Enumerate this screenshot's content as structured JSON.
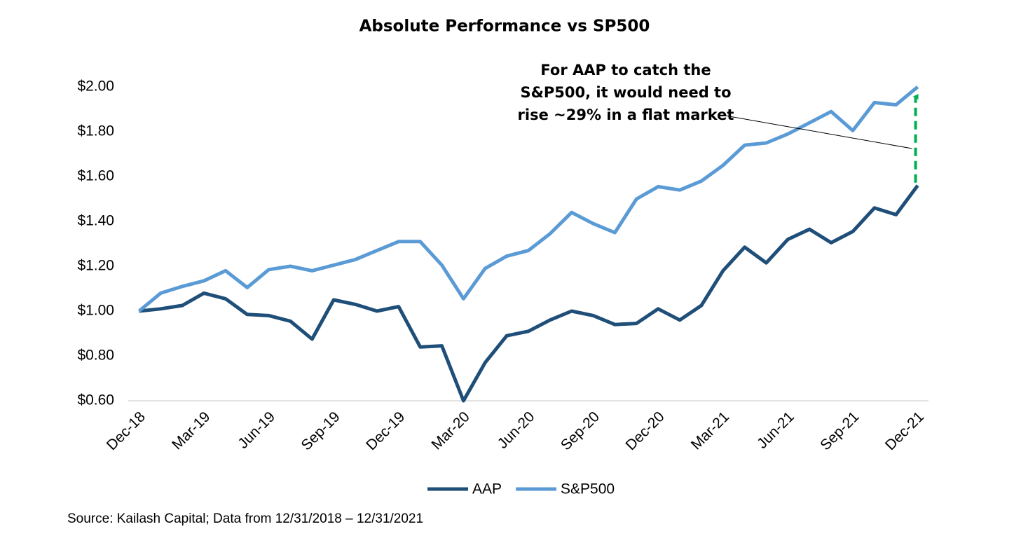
{
  "chart_data": {
    "type": "line",
    "title": "Absolute Performance vs SP500",
    "annotation": [
      "For AAP to catch the",
      "S&P500, it would need to",
      "rise ~29% in a flat market"
    ],
    "source": "Source: Kailash Capital; Data from 12/31/2018 – 12/31/2021",
    "categories": [
      "Dec-18",
      null,
      null,
      "Mar-19",
      null,
      null,
      "Jun-19",
      null,
      null,
      "Sep-19",
      null,
      null,
      "Dec-19",
      null,
      null,
      "Mar-20",
      null,
      null,
      "Jun-20",
      null,
      null,
      "Sep-20",
      null,
      null,
      "Dec-20",
      null,
      null,
      "Mar-21",
      null,
      null,
      "Jun-21",
      null,
      null,
      "Sep-21",
      null,
      null,
      "Dec-21"
    ],
    "series": [
      {
        "name": "AAP",
        "color": "#1f4e79",
        "values": [
          1.0,
          1.01,
          1.025,
          1.08,
          1.055,
          0.985,
          0.98,
          0.955,
          0.875,
          1.05,
          1.03,
          1.0,
          1.02,
          0.84,
          0.845,
          0.6,
          0.77,
          0.89,
          0.91,
          0.96,
          1.0,
          0.98,
          0.94,
          0.945,
          1.01,
          0.96,
          1.025,
          1.18,
          1.285,
          1.215,
          1.32,
          1.365,
          1.305,
          1.355,
          1.46,
          1.43,
          1.56
        ]
      },
      {
        "name": "S&P500",
        "color": "#5b9bd5",
        "values": [
          1.0,
          1.08,
          1.11,
          1.135,
          1.18,
          1.105,
          1.185,
          1.2,
          1.18,
          1.205,
          1.23,
          1.27,
          1.31,
          1.31,
          1.205,
          1.055,
          1.19,
          1.245,
          1.27,
          1.345,
          1.44,
          1.39,
          1.35,
          1.5,
          1.555,
          1.54,
          1.58,
          1.65,
          1.74,
          1.75,
          1.79,
          1.84,
          1.89,
          1.805,
          1.93,
          1.92,
          2.0
        ]
      }
    ],
    "ylim": [
      0.6,
      2.0
    ],
    "yticks": [
      {
        "value": 0.6,
        "label": "$0.60"
      },
      {
        "value": 0.8,
        "label": "$0.80"
      },
      {
        "value": 1.0,
        "label": "$1.00"
      },
      {
        "value": 1.2,
        "label": "$1.20"
      },
      {
        "value": 1.4,
        "label": "$1.40"
      },
      {
        "value": 1.6,
        "label": "$1.60"
      },
      {
        "value": 1.8,
        "label": "$1.80"
      },
      {
        "value": 2.0,
        "label": "$2.00"
      }
    ],
    "grid": false,
    "legend": "bottom",
    "arrow_color": "#00b050"
  }
}
